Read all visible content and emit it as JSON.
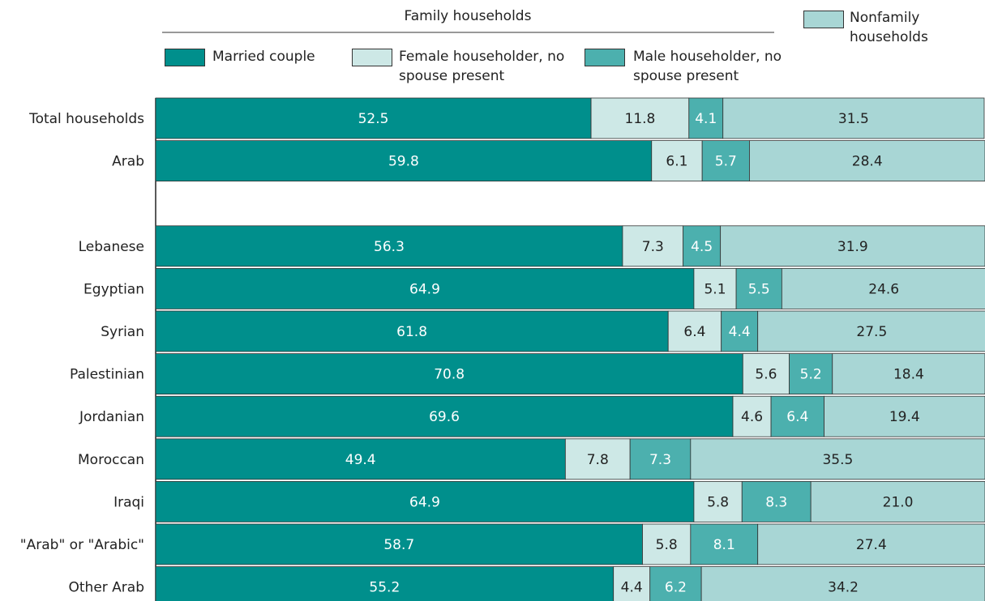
{
  "chart_data": {
    "type": "stacked_bar_horizontal",
    "legend_group_title": "Family households",
    "categories": [
      "Total households",
      "Arab",
      null,
      "Lebanese",
      "Egyptian",
      "Syrian",
      "Palestinian",
      "Jordanian",
      "Moroccan",
      "Iraqi",
      "\"Arab\" or \"Arabic\"",
      "Other Arab"
    ],
    "xlim": [
      0,
      100
    ],
    "series": [
      {
        "name": "Married couple",
        "color": "#008f8c",
        "values": [
          52.5,
          59.8,
          null,
          56.3,
          64.9,
          61.8,
          70.8,
          69.6,
          49.4,
          64.9,
          58.7,
          55.2
        ],
        "value_labels": [
          "52.5",
          "59.8",
          null,
          "56.3",
          "64.9",
          "61.8",
          "70.8",
          "69.6",
          "49.4",
          "64.9",
          "58.7",
          "55.2"
        ]
      },
      {
        "name": "Female householder, no spouse present",
        "color": "#cde8e6",
        "values": [
          11.8,
          6.1,
          null,
          7.3,
          5.1,
          6.4,
          5.6,
          4.6,
          7.8,
          5.8,
          5.8,
          4.4
        ],
        "value_labels": [
          "11.8",
          "6.1",
          null,
          "7.3",
          "5.1",
          "6.4",
          "5.6",
          "4.6",
          "7.8",
          "5.8",
          "5.8",
          "4.4"
        ]
      },
      {
        "name": "Male householder, no spouse present",
        "color": "#4cb0ae",
        "values": [
          4.1,
          5.7,
          null,
          4.5,
          5.5,
          4.4,
          5.2,
          6.4,
          7.3,
          8.3,
          8.1,
          6.2
        ],
        "value_labels": [
          "4.1",
          "5.7",
          null,
          "4.5",
          "5.5",
          "4.4",
          "5.2",
          "6.4",
          "7.3",
          "8.3",
          "8.1",
          "6.2"
        ]
      },
      {
        "name": "Nonfamily households",
        "color": "#a8d6d5",
        "values": [
          31.5,
          28.4,
          null,
          31.9,
          24.6,
          27.5,
          18.4,
          19.4,
          35.5,
          21.0,
          27.4,
          34.2
        ],
        "value_labels": [
          "31.5",
          "28.4",
          null,
          "31.9",
          "24.6",
          "27.5",
          "18.4",
          "19.4",
          "35.5",
          "21.0",
          "27.4",
          "34.2"
        ]
      }
    ]
  }
}
